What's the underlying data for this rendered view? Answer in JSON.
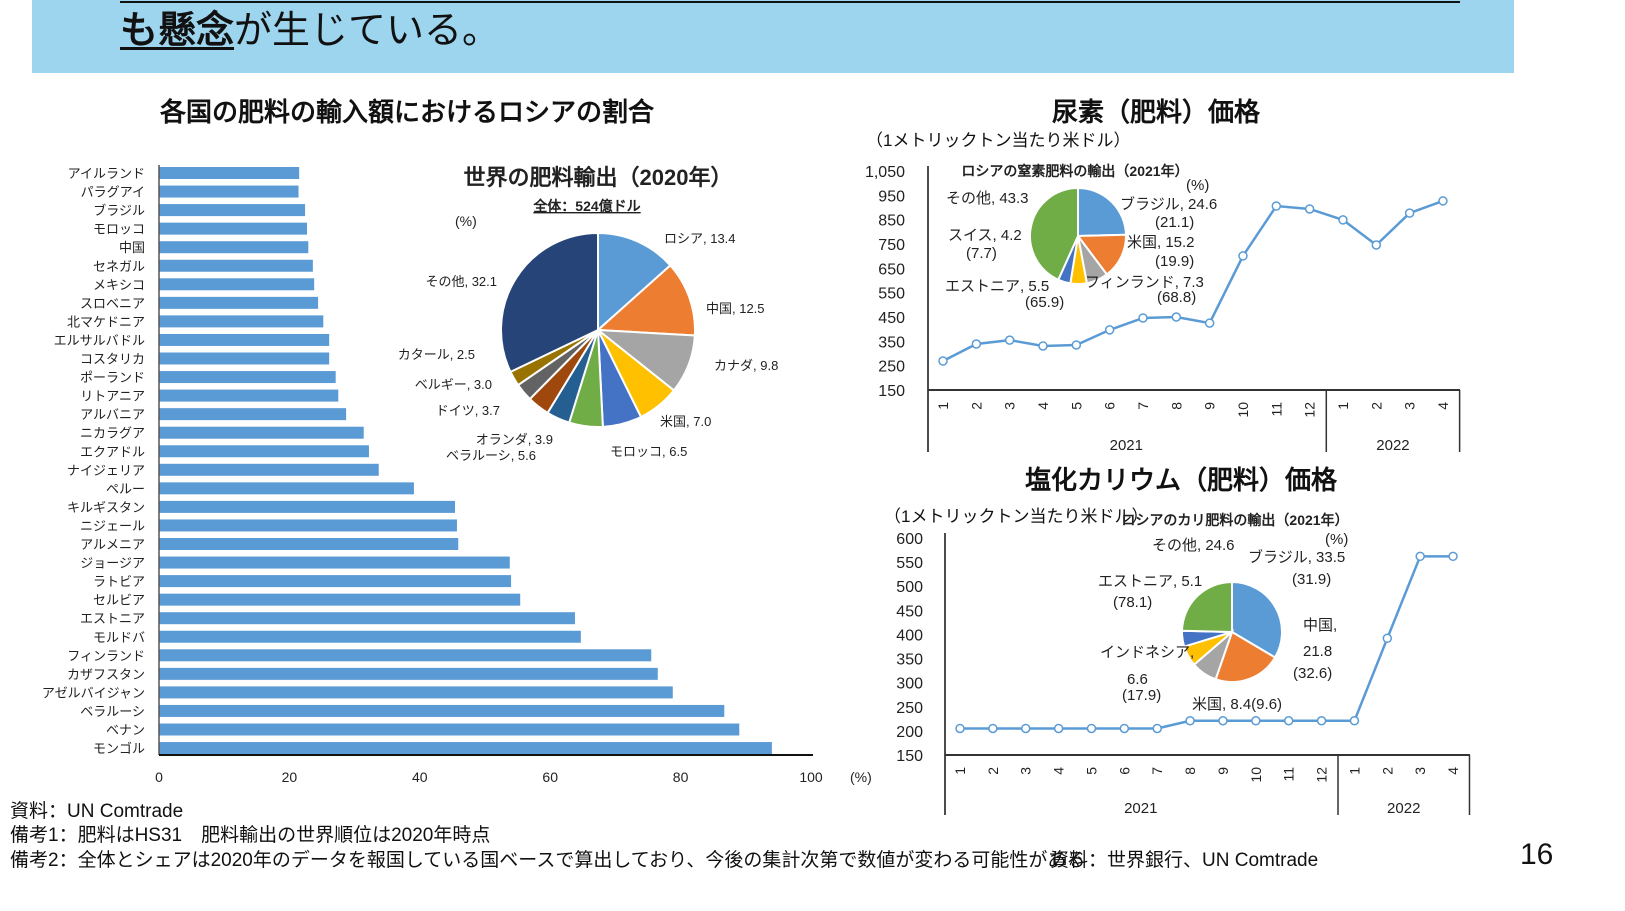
{
  "header": {
    "headline_emphasis": "も懸念",
    "headline_rest": "が生じている。"
  },
  "colors": {
    "header_band": "#9DD5EE",
    "bar": "#5B9BD5",
    "line": "#5B9BD5"
  },
  "footer": {
    "source_left": "資料：UN Comtrade",
    "note1": "備考1：肥料はHS31　肥料輸出の世界順位は2020年時点",
    "note2": "備考2：全体とシェアは2020年のデータを報国している国ベースで算出しており、今後の集計次第で数値が変わる可能性がある",
    "source_right": "資料：世界銀行、UN Comtrade",
    "page_number": "16"
  },
  "chart_data": [
    {
      "type": "bar",
      "orientation": "horizontal",
      "title": "各国の肥料の輸入額におけるロシアの割合",
      "xlabel": "(%)",
      "xlim": [
        0,
        100
      ],
      "xticks": [
        "0",
        "20",
        "40",
        "60",
        "80",
        "100"
      ],
      "categories": [
        "アイルランド",
        "パラグアイ",
        "ブラジル",
        "モロッコ",
        "中国",
        "セネガル",
        "メキシコ",
        "スロベニア",
        "北マケドニア",
        "エルサルバドル",
        "コスタリカ",
        "ポーランド",
        "リトアニア",
        "アルバニア",
        "ニカラグア",
        "エクアドル",
        "ナイジェリア",
        "ペルー",
        "キルギスタン",
        "ニジェール",
        "アルメニア",
        "ジョージア",
        "ラトビア",
        "セルビア",
        "エストニア",
        "モルドバ",
        "フィンランド",
        "カザフスタン",
        "アゼルバイジャン",
        "ベラルーシ",
        "ベナン",
        "モンゴル"
      ],
      "values": [
        21.5,
        21.4,
        22.4,
        22.7,
        22.9,
        23.6,
        23.8,
        24.4,
        25.2,
        26.1,
        26.1,
        27.1,
        27.5,
        28.7,
        31.4,
        32.2,
        33.7,
        39.1,
        45.4,
        45.7,
        45.9,
        53.8,
        54.0,
        55.4,
        63.8,
        64.7,
        75.5,
        76.5,
        78.8,
        86.7,
        89.0,
        94.0
      ],
      "grid": false
    },
    {
      "type": "pie",
      "title": "世界の肥料輸出（2020年）",
      "subtitle": "全体：524億ドル",
      "unit": "(%)",
      "slices": [
        {
          "name": "ロシア",
          "value": 13.4,
          "color": "#5B9BD5"
        },
        {
          "name": "中国",
          "value": 12.5,
          "color": "#ED7D31"
        },
        {
          "name": "カナダ",
          "value": 9.8,
          "color": "#A5A5A5"
        },
        {
          "name": "米国",
          "value": 7.0,
          "color": "#FFC000"
        },
        {
          "name": "モロッコ",
          "value": 6.5,
          "color": "#4472C4"
        },
        {
          "name": "ベラルーシ",
          "value": 5.6,
          "color": "#70AD47"
        },
        {
          "name": "オランダ",
          "value": 3.9,
          "color": "#255E91"
        },
        {
          "name": "ドイツ",
          "value": 3.7,
          "color": "#9E480E"
        },
        {
          "name": "ベルギー",
          "value": 3.0,
          "color": "#636363"
        },
        {
          "name": "カタール",
          "value": 2.5,
          "color": "#997300"
        },
        {
          "name": "その他",
          "value": 32.1,
          "color": "#264478"
        }
      ]
    },
    {
      "type": "line",
      "title": "尿素（肥料）価格",
      "ylabel": "（1メトリックトン当たり米ドル）",
      "ylim": [
        150,
        1050
      ],
      "yticks": [
        "1,050",
        "950",
        "850",
        "750",
        "650",
        "550",
        "450",
        "350",
        "250",
        "150"
      ],
      "x": [
        "1",
        "2",
        "3",
        "4",
        "5",
        "6",
        "7",
        "8",
        "9",
        "10",
        "11",
        "12",
        "1",
        "2",
        "3",
        "4"
      ],
      "year_groups": [
        {
          "label": "2021",
          "months": 12
        },
        {
          "label": "2022",
          "months": 4
        }
      ],
      "values": [
        269,
        339,
        355,
        331,
        335,
        397,
        446,
        450,
        425,
        701,
        906,
        894,
        849,
        746,
        877,
        927
      ],
      "inset_pie": {
        "title": "ロシアの窒素肥料の輸出（2021年）",
        "unit": "(%)",
        "slices": [
          {
            "name": "ブラジル",
            "value": 24.6,
            "sub": "(21.1)",
            "color": "#5B9BD5"
          },
          {
            "name": "米国",
            "value": 15.2,
            "sub": "(19.9)",
            "color": "#ED7D31"
          },
          {
            "name": "フィンランド",
            "value": 7.3,
            "sub": "(68.8)",
            "color": "#A5A5A5"
          },
          {
            "name": "エストニア",
            "value": 5.5,
            "sub": "(65.9)",
            "color": "#FFC000"
          },
          {
            "name": "スイス",
            "value": 4.2,
            "sub": "(7.7)",
            "color": "#4472C4"
          },
          {
            "name": "その他",
            "value": 43.3,
            "sub": "",
            "color": "#70AD47"
          }
        ]
      }
    },
    {
      "type": "line",
      "title": "塩化カリウム（肥料）価格",
      "ylabel": "（1メトリックトン当たり米ドル）",
      "ylim": [
        150,
        600
      ],
      "yticks": [
        "600",
        "550",
        "500",
        "450",
        "400",
        "350",
        "300",
        "250",
        "200",
        "150"
      ],
      "x": [
        "1",
        "2",
        "3",
        "4",
        "5",
        "6",
        "7",
        "8",
        "9",
        "10",
        "11",
        "12",
        "1",
        "2",
        "3",
        "4"
      ],
      "year_groups": [
        {
          "label": "2021",
          "months": 12
        },
        {
          "label": "2022",
          "months": 4
        }
      ],
      "values": [
        205,
        205,
        205,
        205,
        205,
        205,
        205,
        221,
        221,
        221,
        221,
        221,
        221,
        392,
        562,
        562
      ],
      "inset_pie": {
        "title": "ロシアのカリ肥料の輸出（2021年）",
        "unit": "(%)",
        "slices": [
          {
            "name": "ブラジル",
            "value": 33.5,
            "sub": "(31.9)",
            "color": "#5B9BD5"
          },
          {
            "name": "中国",
            "value": 21.8,
            "sub": "(32.6)",
            "color": "#ED7D31"
          },
          {
            "name": "米国",
            "value": 8.4,
            "sub": "(9.6)",
            "color": "#A5A5A5"
          },
          {
            "name": "インドネシア",
            "value": 6.6,
            "sub": "(17.9)",
            "color": "#FFC000"
          },
          {
            "name": "エストニア",
            "value": 5.1,
            "sub": "(78.1)",
            "color": "#4472C4"
          },
          {
            "name": "その他",
            "value": 24.6,
            "sub": "",
            "color": "#70AD47"
          }
        ]
      }
    }
  ]
}
